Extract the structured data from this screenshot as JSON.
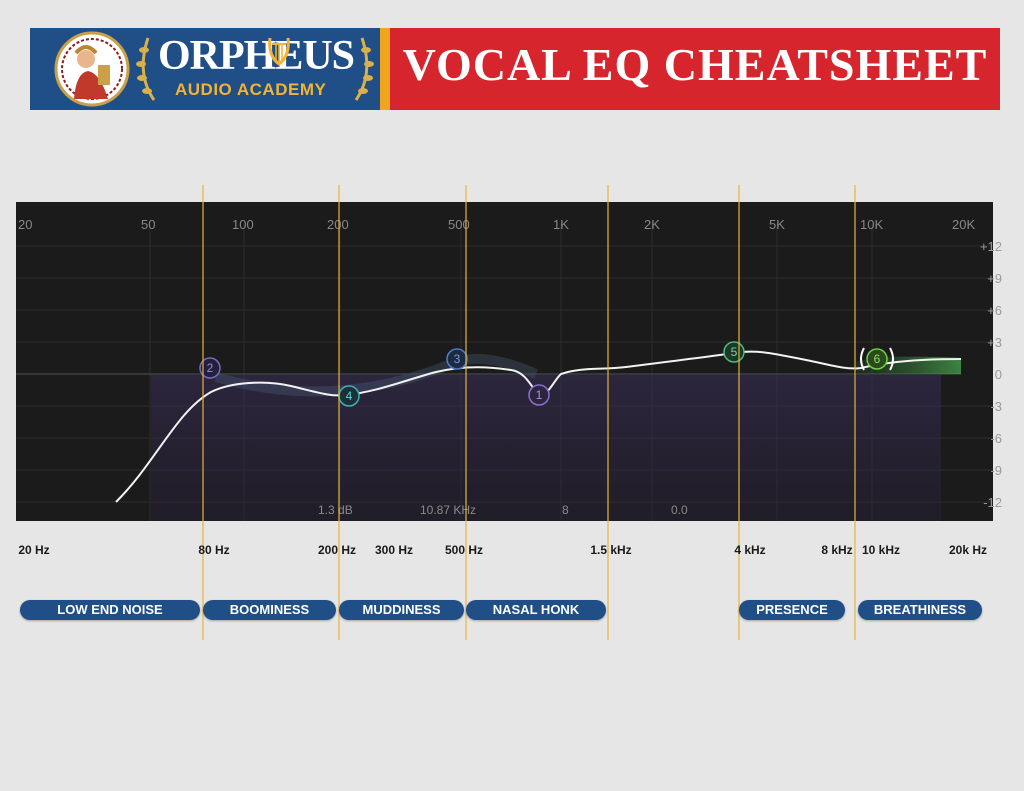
{
  "header": {
    "brand_name": "ORPHEUS",
    "brand_sub": "AUDIO ACADEMY",
    "title": "VOCAL EQ CHEATSHEET"
  },
  "eq": {
    "top_freq_labels": [
      "20",
      "50",
      "100",
      "200",
      "500",
      "1K",
      "2K",
      "5K",
      "10K",
      "20K"
    ],
    "db_labels": [
      "+12",
      "+9",
      "+6",
      "+3",
      "0",
      "-3",
      "-6",
      "-9",
      "-12"
    ],
    "readouts": [
      "1.3 dB",
      "10.87 KHz",
      "8",
      "0.0"
    ],
    "nodes": [
      "1",
      "2",
      "3",
      "4",
      "5",
      "6"
    ]
  },
  "bottom_freq_labels": [
    "20 Hz",
    "80 Hz",
    "200 Hz",
    "300 Hz",
    "500 Hz",
    "1.5 kHz",
    "4 kHz",
    "8 kHz",
    "10 kHz",
    "20k Hz"
  ],
  "bands": [
    "LOW END NOISE",
    "BOOMINESS",
    "MUDDINESS",
    "NASAL HONK",
    "PRESENCE",
    "BREATHINESS"
  ],
  "colors": {
    "brand_blue": "#1f4f86",
    "title_red": "#d7252e",
    "accent_gold": "#f1a51f",
    "panel_bg": "#1b1b1b"
  }
}
